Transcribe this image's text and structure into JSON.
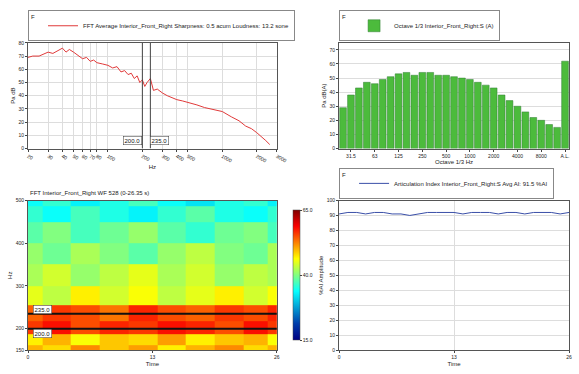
{
  "chart_data": [
    {
      "type": "line",
      "title": "F",
      "x_label": "Hz",
      "y_label": "Pa dB",
      "log": "x",
      "grid": true,
      "legend": "top left",
      "x": [
        20,
        22,
        25,
        28,
        30,
        33,
        36,
        40,
        43,
        46,
        50,
        55,
        60,
        65,
        70,
        75,
        80,
        90,
        100,
        110,
        120,
        130,
        140,
        150,
        160,
        170,
        180,
        190,
        200,
        210,
        220,
        235,
        250,
        270,
        300,
        330,
        370,
        400,
        450,
        500,
        600,
        700,
        800,
        900,
        1000,
        1200,
        1400,
        1600,
        1800,
        2000,
        2200,
        2400,
        2600
      ],
      "series": [
        {
          "name": "FFT Average Interior_Front_Right Sharpness: 0.5 acum Loudness: 13.2 sone",
          "color": "#e03a3a",
          "values": [
            69,
            70,
            70,
            72,
            73,
            72,
            74,
            76,
            73,
            75,
            73,
            70,
            68,
            69,
            66,
            67,
            65,
            64,
            63,
            61,
            62,
            58,
            59,
            56,
            57,
            53,
            55,
            50,
            52,
            47,
            50,
            53,
            44,
            45,
            42,
            40,
            38,
            37,
            36,
            35,
            33,
            31,
            30,
            29,
            28,
            24,
            21,
            17,
            15,
            12,
            9,
            6,
            3
          ]
        }
      ],
      "xlim": [
        20,
        3000
      ],
      "xticks": [
        20,
        30,
        40,
        50,
        60,
        70,
        80,
        100,
        200,
        300,
        400,
        500,
        1000,
        2000,
        3000
      ],
      "ylim": [
        0,
        80
      ],
      "yticks": [
        0,
        10,
        20,
        30,
        40,
        50,
        60,
        70,
        80
      ],
      "annotations": [
        {
          "x": 200,
          "text": "200.0"
        },
        {
          "x": 235,
          "text": "235.0"
        }
      ]
    },
    {
      "type": "bar",
      "title": "F",
      "x_label": "Octave 1/3 Hz",
      "y_label": "Pa dB(A)",
      "grid": true,
      "legend": "top left",
      "categories": [
        null,
        "31.5",
        null,
        null,
        "63",
        null,
        null,
        "125",
        null,
        null,
        "250",
        null,
        null,
        "500",
        null,
        null,
        "1000",
        null,
        null,
        "2000",
        null,
        null,
        "4000",
        null,
        null,
        "8000",
        null,
        null,
        "A.L."
      ],
      "series": [
        {
          "name": "Octave 1/3 Interior_Front_Right:S (A)",
          "color": "#4cbb3c",
          "values": [
            29,
            38,
            43,
            47,
            46,
            49,
            51,
            53,
            54,
            52,
            54,
            54,
            52,
            52,
            51,
            50,
            49,
            47,
            45,
            43,
            38,
            34,
            30,
            26,
            22,
            20,
            17,
            15,
            62
          ]
        }
      ],
      "ylim": [
        0,
        75
      ],
      "yticks": [
        0,
        10,
        20,
        30,
        40,
        50,
        60,
        70
      ]
    },
    {
      "type": "heatmap",
      "title": "FFT Interior_Front_Right WF 528 (0-26.35 s)",
      "x_label": "Time",
      "y_label": "Hz",
      "x": [
        0,
        3,
        6,
        9,
        12,
        15,
        18,
        21,
        24,
        26
      ],
      "y": [
        150,
        175,
        200,
        235,
        275,
        325,
        375,
        425,
        475,
        500
      ],
      "z": [
        [
          50,
          48,
          52,
          49,
          51,
          47,
          50,
          52,
          48,
          50
        ],
        [
          47,
          50,
          46,
          49,
          48,
          51,
          47,
          49,
          50,
          46
        ],
        [
          56,
          58,
          55,
          57,
          56,
          58,
          57,
          55,
          58,
          56
        ],
        [
          54,
          56,
          55,
          53,
          57,
          55,
          54,
          56,
          55,
          57
        ],
        [
          45,
          43,
          47,
          44,
          46,
          43,
          45,
          47,
          44,
          46
        ],
        [
          42,
          44,
          41,
          43,
          45,
          42,
          44,
          41,
          43,
          42
        ],
        [
          41,
          39,
          42,
          40,
          38,
          41,
          43,
          40,
          39,
          42
        ],
        [
          38,
          40,
          37,
          39,
          41,
          38,
          36,
          39,
          40,
          37
        ],
        [
          36,
          34,
          37,
          35,
          33,
          36,
          38,
          35,
          34,
          36
        ],
        [
          34,
          36,
          33,
          35,
          37,
          34,
          32,
          35,
          36,
          33
        ]
      ],
      "xlim": [
        0,
        26
      ],
      "xticks": [
        0,
        13,
        26
      ],
      "ylim": [
        150,
        500
      ],
      "yticks": [
        150,
        200,
        300,
        400,
        500
      ],
      "colorbar": {
        "range": [
          15,
          65
        ],
        "ticks": [
          {
            "value": 15,
            "label": "15.0"
          },
          {
            "value": 40,
            "label": "40.0"
          },
          {
            "value": 65,
            "label": "65.0"
          }
        ]
      },
      "annotations": [
        {
          "y": 200,
          "text": "200.0"
        },
        {
          "y": 235,
          "text": "235.0"
        }
      ]
    },
    {
      "type": "line",
      "title": "F",
      "x_label": "Time",
      "y_label": "%AI Amplitude",
      "grid": true,
      "legend": "top left",
      "x": [
        0,
        1,
        2,
        3,
        4,
        5,
        6,
        7,
        8,
        9,
        10,
        11,
        12,
        13,
        14,
        15,
        16,
        17,
        18,
        19,
        20,
        21,
        22,
        23,
        24,
        25,
        26
      ],
      "series": [
        {
          "name": "Articulation Index Interior_Front_Right:S Avg AI: 91.5 %AI",
          "color": "#3a4fa8",
          "values": [
            91,
            92,
            92,
            91,
            92,
            92,
            91,
            91,
            90,
            91,
            92,
            92,
            92,
            92,
            91,
            92,
            92,
            92,
            91,
            92,
            92,
            91,
            92,
            92,
            92,
            91,
            92
          ]
        }
      ],
      "xlim": [
        0,
        26
      ],
      "xticks": [
        0,
        13,
        26
      ],
      "ylim": [
        0,
        100
      ],
      "yticks": [
        0,
        10,
        20,
        30,
        40,
        50,
        60,
        70,
        80,
        90,
        100
      ]
    }
  ]
}
